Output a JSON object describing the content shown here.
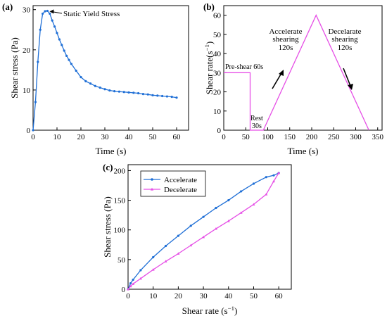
{
  "colors": {
    "blue": "#1f6fd6",
    "pink": "#e64fe6",
    "black": "#000000"
  },
  "chart_data": [
    {
      "panel": "(a)",
      "type": "line",
      "xlabel": "Time (s)",
      "ylabel": "Shear stress (Pa)",
      "xlim": [
        0,
        65
      ],
      "ylim": [
        0,
        31
      ],
      "xticks": [
        0,
        10,
        20,
        30,
        40,
        50,
        60
      ],
      "yticks": [
        0,
        10,
        20,
        30
      ],
      "annotation": "Static Yield Stress",
      "series": [
        {
          "color": "#1f6fd6",
          "x": [
            0,
            1,
            2,
            3,
            4,
            5,
            6,
            7,
            8,
            9,
            10,
            11,
            12,
            13,
            14,
            15,
            16,
            18,
            20,
            22,
            24,
            26,
            28,
            30,
            32,
            34,
            36,
            38,
            40,
            42,
            44,
            46,
            48,
            50,
            52,
            54,
            56,
            58,
            60
          ],
          "y": [
            0,
            7,
            17,
            25,
            29,
            29.6,
            29.7,
            29,
            27.3,
            25.8,
            24.2,
            22.6,
            21.2,
            19.8,
            18.5,
            17.5,
            16.5,
            14.8,
            13.2,
            12.2,
            11.6,
            11.0,
            10.6,
            10.2,
            9.9,
            9.7,
            9.6,
            9.5,
            9.4,
            9.3,
            9.2,
            9.0,
            8.9,
            8.7,
            8.6,
            8.5,
            8.4,
            8.3,
            8.1
          ]
        }
      ]
    },
    {
      "panel": "(b)",
      "type": "line",
      "xlabel": "Time (s)",
      "ylabel": "Shear rate(s⁻¹)",
      "xlim": [
        0,
        360
      ],
      "ylim": [
        0,
        65
      ],
      "xticks": [
        0,
        50,
        100,
        150,
        200,
        250,
        300,
        350
      ],
      "yticks": [
        0,
        10,
        20,
        30,
        40,
        50,
        60
      ],
      "annotations": [
        "Pre-shear 60s",
        "Rest",
        "30s",
        "Accelerate",
        "shearing",
        "120s",
        "Decelarate",
        "shearing",
        "120s"
      ],
      "series": [
        {
          "color": "#e64fe6",
          "x": [
            0,
            60,
            60,
            90,
            210,
            330
          ],
          "y": [
            30,
            30,
            0,
            0,
            60,
            0
          ]
        }
      ]
    },
    {
      "panel": "(c)",
      "type": "line",
      "xlabel": "Shear rate (s⁻¹)",
      "ylabel": "Shear stress (Pa)",
      "xlim": [
        0,
        65
      ],
      "ylim": [
        0,
        210
      ],
      "xticks": [
        0,
        10,
        20,
        30,
        40,
        50,
        60
      ],
      "yticks": [
        0,
        50,
        100,
        150,
        200
      ],
      "legend_position": "top-left",
      "series": [
        {
          "name": "Accelerate",
          "color": "#1f6fd6",
          "x": [
            0,
            1,
            2,
            5,
            10,
            15,
            20,
            25,
            30,
            35,
            40,
            45,
            50,
            55,
            58,
            60
          ],
          "y": [
            0,
            10,
            16,
            32,
            54,
            73,
            90,
            107,
            122,
            137,
            150,
            165,
            178,
            189,
            192,
            196
          ]
        },
        {
          "name": "Decelerate",
          "color": "#e64fe6",
          "x": [
            0,
            1,
            2,
            5,
            10,
            15,
            20,
            25,
            30,
            35,
            40,
            45,
            50,
            55,
            58,
            60
          ],
          "y": [
            0,
            5,
            9,
            18,
            33,
            47,
            60,
            74,
            88,
            102,
            115,
            129,
            143,
            160,
            182,
            196
          ]
        }
      ]
    }
  ]
}
